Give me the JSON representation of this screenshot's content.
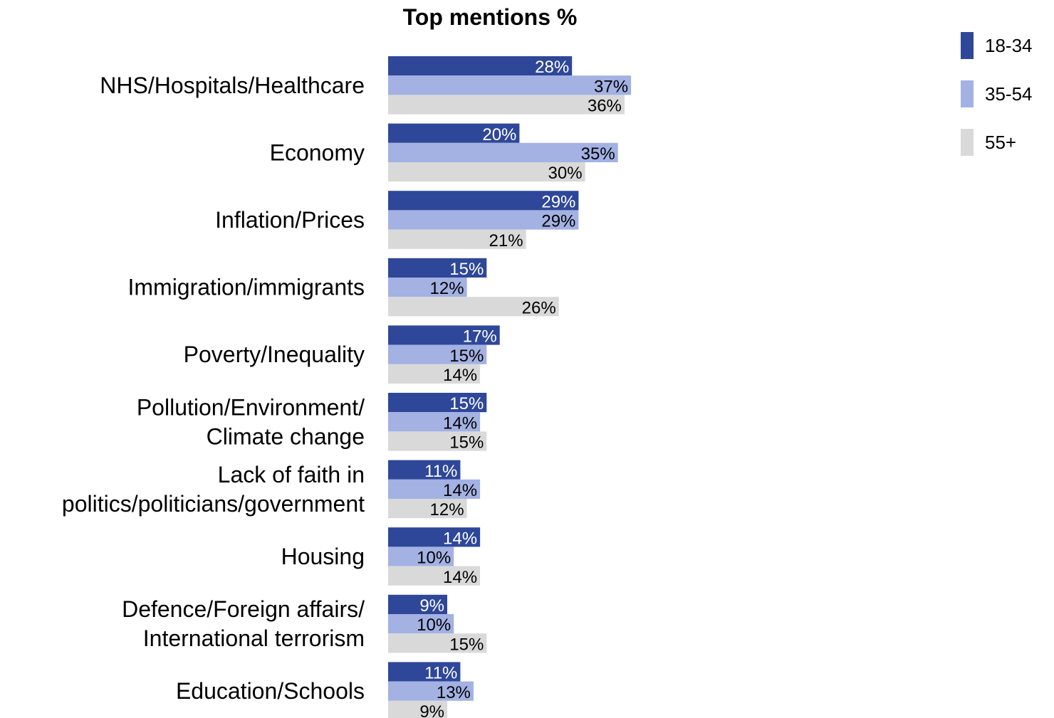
{
  "chart_data": {
    "type": "bar",
    "orientation": "horizontal",
    "title": "Top mentions %",
    "categories": [
      "NHS/Hospitals/Healthcare",
      "Economy",
      "Inflation/Prices",
      "Immigration/immigrants",
      "Poverty/Inequality",
      "Pollution/Environment/\nClimate change",
      "Lack of faith in\npolitics/politicians/government",
      "Housing",
      "Defence/Foreign affairs/\nInternational terrorism",
      "Education/Schools"
    ],
    "series": [
      {
        "name": "18-34",
        "color": "#2e4799",
        "label_color": "#ffffff",
        "values": [
          28,
          20,
          29,
          15,
          17,
          15,
          11,
          14,
          9,
          11
        ]
      },
      {
        "name": "35-54",
        "color": "#a3b1e3",
        "label_color": "#000000",
        "values": [
          37,
          35,
          29,
          12,
          15,
          14,
          14,
          10,
          10,
          13
        ]
      },
      {
        "name": "55+",
        "color": "#d9d9d9",
        "label_color": "#000000",
        "values": [
          36,
          30,
          21,
          26,
          14,
          15,
          12,
          14,
          15,
          9
        ]
      }
    ],
    "value_suffix": "%",
    "legend_position": "top-right",
    "grid": false,
    "axes_visible": false
  }
}
